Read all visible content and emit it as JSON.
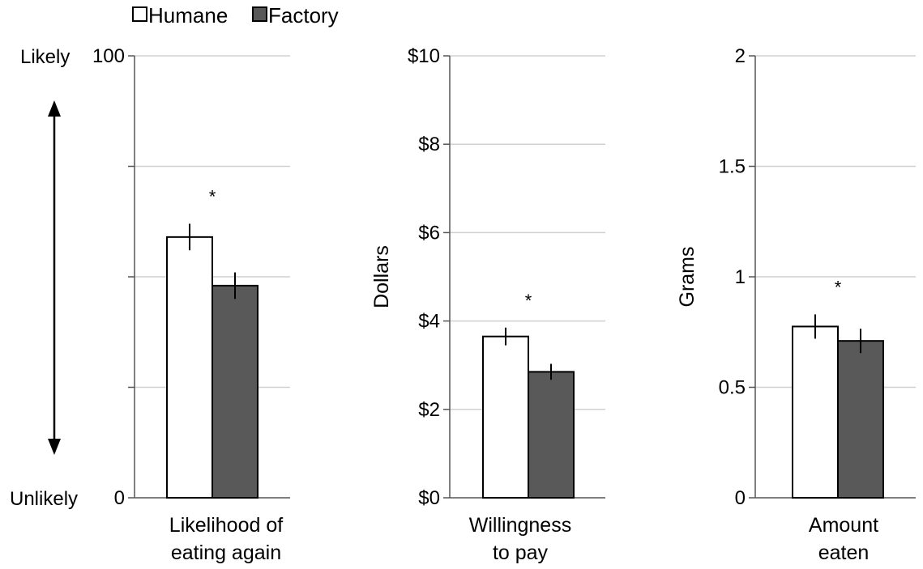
{
  "legend": {
    "items": [
      {
        "label": "Humane",
        "color": "#ffffff"
      },
      {
        "label": "Factory",
        "color": "#595959"
      }
    ]
  },
  "chart_data": [
    {
      "type": "bar",
      "categories": [
        "Likelihood of eating again"
      ],
      "category_lines": [
        "Likelihood of",
        "eating again"
      ],
      "series": [
        {
          "name": "Humane",
          "values": [
            59
          ],
          "error": [
            3
          ],
          "color": "#ffffff"
        },
        {
          "name": "Factory",
          "values": [
            48
          ],
          "error": [
            3
          ],
          "color": "#595959"
        }
      ],
      "ylim": [
        0,
        100
      ],
      "yticks": [
        0,
        25,
        50,
        75,
        100
      ],
      "ytick_labels": [
        "0",
        "",
        "",
        "",
        "100"
      ],
      "ylabel": "",
      "scale_labels": {
        "top": "Likely",
        "bottom": "Unlikely"
      },
      "double_arrow": true,
      "significance": "*",
      "grid": true
    },
    {
      "type": "bar",
      "categories": [
        "Willingness to pay"
      ],
      "category_lines": [
        "Willingness",
        "to pay"
      ],
      "series": [
        {
          "name": "Humane",
          "values": [
            3.65
          ],
          "error": [
            0.2
          ],
          "color": "#ffffff"
        },
        {
          "name": "Factory",
          "values": [
            2.85
          ],
          "error": [
            0.18
          ],
          "color": "#595959"
        }
      ],
      "ylim": [
        0,
        10
      ],
      "yticks": [
        0,
        2,
        4,
        6,
        8,
        10
      ],
      "ytick_labels": [
        "$0",
        "$2",
        "$4",
        "$6",
        "$8",
        "$10"
      ],
      "ylabel": "Dollars",
      "significance": "*",
      "grid": true
    },
    {
      "type": "bar",
      "categories": [
        "Amount eaten"
      ],
      "category_lines": [
        "Amount",
        "eaten"
      ],
      "series": [
        {
          "name": "Humane",
          "values": [
            0.775
          ],
          "error": [
            0.055
          ],
          "color": "#ffffff"
        },
        {
          "name": "Factory",
          "values": [
            0.71
          ],
          "error": [
            0.055
          ],
          "color": "#595959"
        }
      ],
      "ylim": [
        0,
        2
      ],
      "yticks": [
        0,
        0.5,
        1,
        1.5,
        2
      ],
      "ytick_labels": [
        "0",
        "0.5",
        "1",
        "1.5",
        "2"
      ],
      "ylabel": "Grams",
      "significance": "*",
      "grid": true
    }
  ]
}
